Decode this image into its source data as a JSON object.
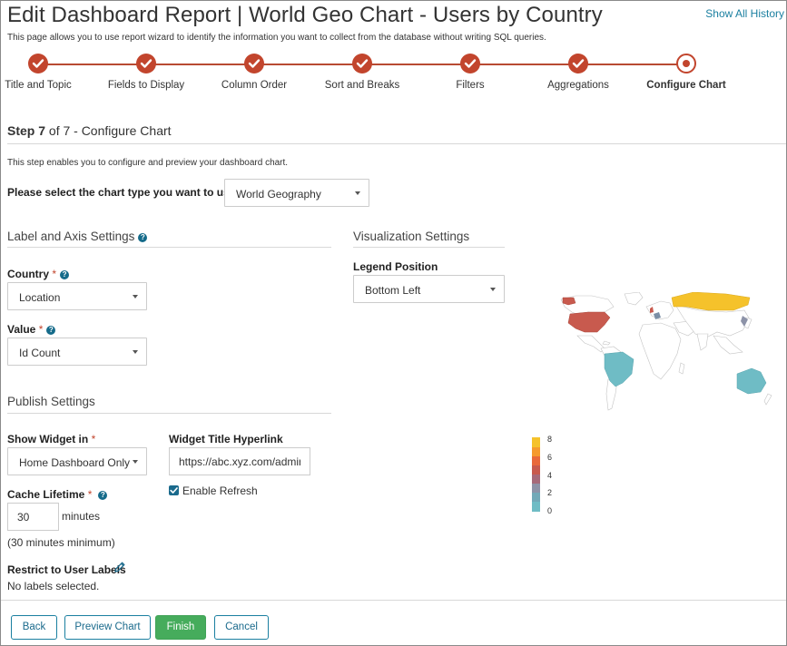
{
  "header": {
    "title": "Edit Dashboard Report | World Geo Chart - Users by Country",
    "description": "This page allows you to use report wizard to identify the information you want to collect from the database without writing SQL queries.",
    "history_link": "Show All History"
  },
  "steps": [
    {
      "label": "Title and Topic",
      "status": "done"
    },
    {
      "label": "Fields to Display",
      "status": "done"
    },
    {
      "label": "Column Order",
      "status": "done"
    },
    {
      "label": "Sort and Breaks",
      "status": "done"
    },
    {
      "label": "Filters",
      "status": "done"
    },
    {
      "label": "Aggregations",
      "status": "done"
    },
    {
      "label": "Configure Chart",
      "status": "current"
    }
  ],
  "step_header": {
    "step": "Step 7",
    "of": "of 7 - Configure Chart"
  },
  "step_description": "This step enables you to configure and preview your dashboard chart.",
  "chart_type": {
    "label": "Please select the chart type you want to use",
    "value": "World Geography"
  },
  "label_axis": {
    "title": "Label and Axis Settings",
    "country_label": "Country",
    "country_value": "Location",
    "value_label": "Value",
    "value_value": "Id Count"
  },
  "visualization": {
    "title": "Visualization Settings",
    "legend_position_label": "Legend Position",
    "legend_position_value": "Bottom Left"
  },
  "publish": {
    "title": "Publish Settings",
    "show_widget_label": "Show Widget in",
    "show_widget_value": "Home Dashboard Only",
    "hyperlink_label": "Widget Title Hyperlink",
    "hyperlink_value": "https://abc.xyz.com/admin",
    "enable_refresh_label": "Enable Refresh",
    "enable_refresh_checked": true,
    "cache_label": "Cache Lifetime",
    "cache_value": "30",
    "cache_unit": "minutes",
    "cache_note": "(30 minutes minimum)",
    "restrict_label": "Restrict to User Labels",
    "restrict_value": "No labels selected."
  },
  "buttons": {
    "back": "Back",
    "preview": "Preview Chart",
    "finish": "Finish",
    "cancel": "Cancel"
  },
  "colors": {
    "accent": "#c2452d",
    "link": "#1a7fa0",
    "finish": "#46ac5c",
    "teal": "#6fbcc5",
    "yellow": "#f5c22b",
    "red": "#c85a4e"
  },
  "map_legend": {
    "ticks": [
      "8",
      "6",
      "4",
      "2",
      "0"
    ]
  }
}
